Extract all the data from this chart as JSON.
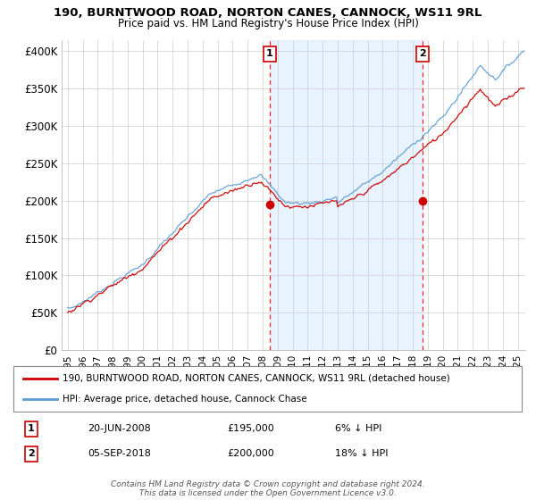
{
  "title": "190, BURNTWOOD ROAD, NORTON CANES, CANNOCK, WS11 9RL",
  "subtitle": "Price paid vs. HM Land Registry's House Price Index (HPI)",
  "ylabel_ticks": [
    "£0",
    "£50K",
    "£100K",
    "£150K",
    "£200K",
    "£250K",
    "£300K",
    "£350K",
    "£400K"
  ],
  "ytick_values": [
    0,
    50000,
    100000,
    150000,
    200000,
    250000,
    300000,
    350000,
    400000
  ],
  "ylim": [
    0,
    415000
  ],
  "xlim_start": 1994.6,
  "xlim_end": 2025.5,
  "hpi_color": "#5b9bd5",
  "hpi_fill_color": "#ddeeff",
  "price_color": "#cc0000",
  "sale1_date": "20-JUN-2008",
  "sale1_price": 195000,
  "sale1_label": "6% ↓ HPI",
  "sale1_x": 2008.47,
  "sale2_date": "05-SEP-2018",
  "sale2_price": 200000,
  "sale2_label": "18% ↓ HPI",
  "sale2_x": 2018.68,
  "legend_label_price": "190, BURNTWOOD ROAD, NORTON CANES, CANNOCK, WS11 9RL (detached house)",
  "legend_label_hpi": "HPI: Average price, detached house, Cannock Chase",
  "footer": "Contains HM Land Registry data © Crown copyright and database right 2024.\nThis data is licensed under the Open Government Licence v3.0.",
  "annotation1_num": "1",
  "annotation2_num": "2",
  "xtick_years": [
    1995,
    1996,
    1997,
    1998,
    1999,
    2000,
    2001,
    2002,
    2003,
    2004,
    2005,
    2006,
    2007,
    2008,
    2009,
    2010,
    2011,
    2012,
    2013,
    2014,
    2015,
    2016,
    2017,
    2018,
    2019,
    2020,
    2021,
    2022,
    2023,
    2024,
    2025
  ]
}
